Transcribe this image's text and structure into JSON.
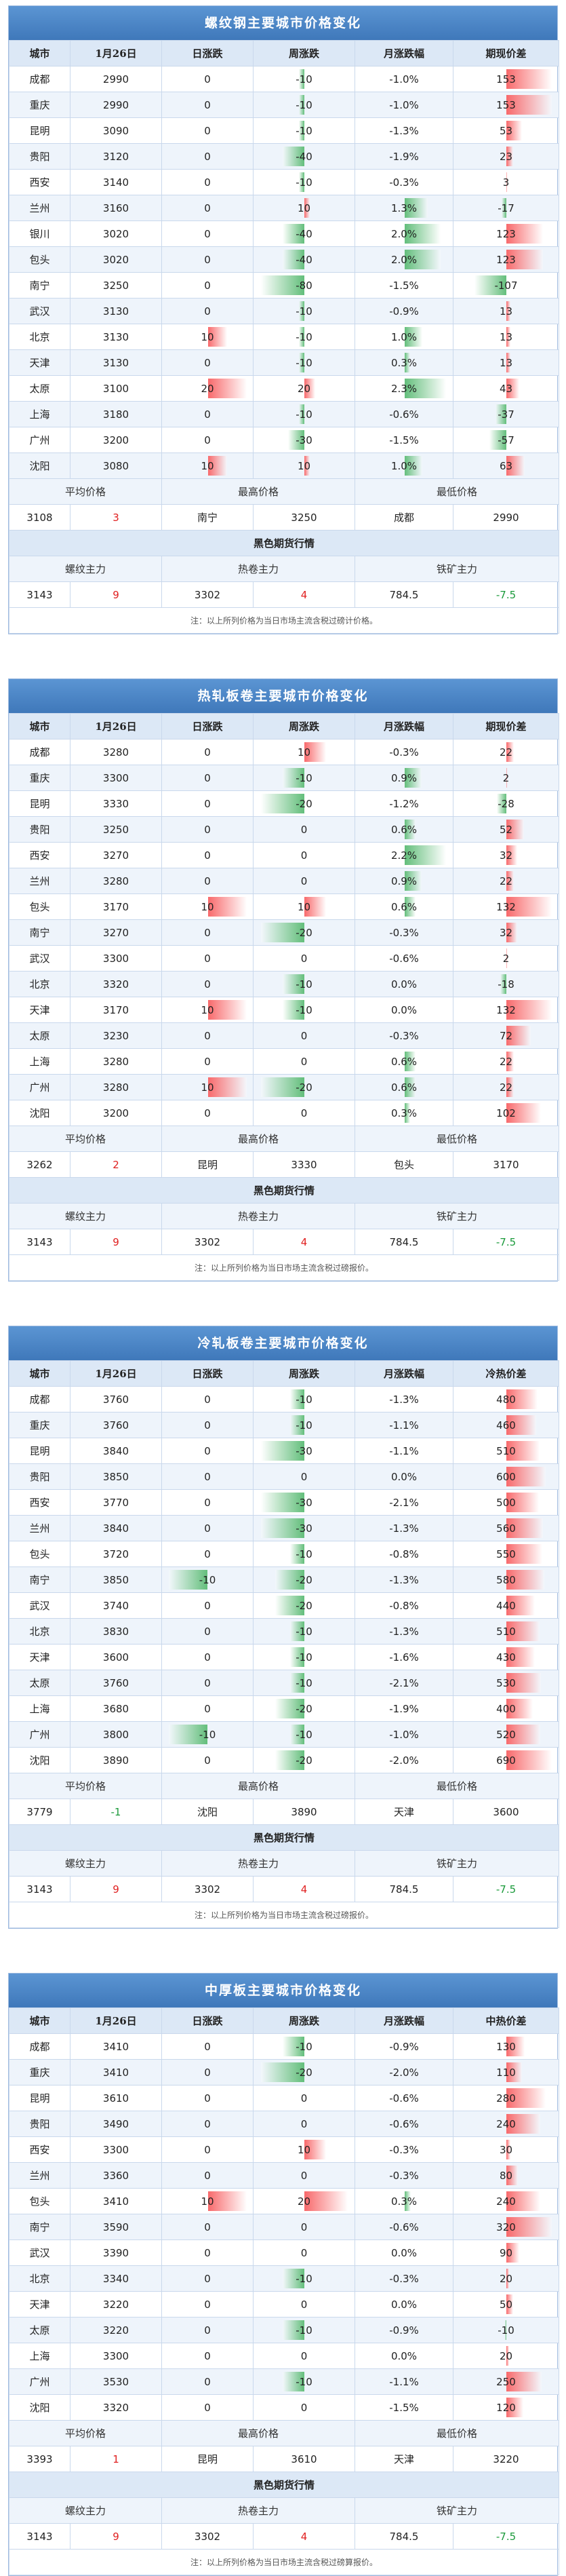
{
  "bar_colors": {
    "up": "#f8696b",
    "down": "#63be7b",
    "month_up": "#63be7b"
  },
  "text_colors": {
    "up": "#e02020",
    "down": "#1a9a3a"
  },
  "tables": [
    {
      "title": "螺纹钢主要城市价格变化",
      "columns": [
        "城市",
        "1月26日",
        "日涨跌",
        "周涨跌",
        "月涨跌幅",
        "期现价差"
      ],
      "rows": [
        [
          "成都",
          2990,
          0,
          -10,
          "-1.0%",
          153
        ],
        [
          "重庆",
          2990,
          0,
          -10,
          "-1.0%",
          153
        ],
        [
          "昆明",
          3090,
          0,
          -10,
          "-1.3%",
          53
        ],
        [
          "贵阳",
          3120,
          0,
          -40,
          "-1.9%",
          23
        ],
        [
          "西安",
          3140,
          0,
          -10,
          "-0.3%",
          3
        ],
        [
          "兰州",
          3160,
          0,
          10,
          "1.3%",
          -17
        ],
        [
          "银川",
          3020,
          0,
          -40,
          "2.0%",
          123
        ],
        [
          "包头",
          3020,
          0,
          -40,
          "2.0%",
          123
        ],
        [
          "南宁",
          3250,
          0,
          -80,
          "-1.5%",
          -107
        ],
        [
          "武汉",
          3130,
          0,
          -10,
          "-0.9%",
          13
        ],
        [
          "北京",
          3130,
          10,
          -10,
          "1.0%",
          13
        ],
        [
          "天津",
          3130,
          0,
          -10,
          "0.3%",
          13
        ],
        [
          "太原",
          3100,
          20,
          20,
          "2.3%",
          43
        ],
        [
          "上海",
          3180,
          0,
          -10,
          "-0.6%",
          -37
        ],
        [
          "广州",
          3200,
          0,
          -30,
          "-1.5%",
          -57
        ],
        [
          "沈阳",
          3080,
          10,
          10,
          "1.0%",
          63
        ]
      ],
      "summary": {
        "labels": [
          "平均价格",
          "最高价格",
          "最低价格"
        ],
        "values": [
          3108,
          3,
          "南宁",
          3250,
          "成都",
          2990
        ]
      },
      "futures": {
        "title": "黑色期货行情",
        "labels": [
          "螺纹主力",
          "热卷主力",
          "铁矿主力"
        ],
        "values": [
          3143,
          9,
          3302,
          4,
          784.5,
          -7.5
        ]
      },
      "note": "注：以上所列价格为当日市场主流含税过磅计价格。"
    },
    {
      "title": "热轧板卷主要城市价格变化",
      "columns": [
        "城市",
        "1月26日",
        "日涨跌",
        "周涨跌",
        "月涨跌幅",
        "期现价差"
      ],
      "rows": [
        [
          "成都",
          3280,
          0,
          10,
          "-0.3%",
          22
        ],
        [
          "重庆",
          3300,
          0,
          -10,
          "0.9%",
          2
        ],
        [
          "昆明",
          3330,
          0,
          -20,
          "-1.2%",
          -28
        ],
        [
          "贵阳",
          3250,
          0,
          0,
          "0.6%",
          52
        ],
        [
          "西安",
          3270,
          0,
          0,
          "2.2%",
          32
        ],
        [
          "兰州",
          3280,
          0,
          0,
          "0.9%",
          22
        ],
        [
          "包头",
          3170,
          10,
          10,
          "0.6%",
          132
        ],
        [
          "南宁",
          3270,
          0,
          -20,
          "-0.3%",
          32
        ],
        [
          "武汉",
          3300,
          0,
          0,
          "-0.6%",
          2
        ],
        [
          "北京",
          3320,
          0,
          -10,
          "0.0%",
          -18
        ],
        [
          "天津",
          3170,
          10,
          -10,
          "0.0%",
          132
        ],
        [
          "太原",
          3230,
          0,
          0,
          "-0.3%",
          72
        ],
        [
          "上海",
          3280,
          0,
          0,
          "0.6%",
          22
        ],
        [
          "广州",
          3280,
          10,
          -20,
          "0.6%",
          22
        ],
        [
          "沈阳",
          3200,
          0,
          0,
          "0.3%",
          102
        ]
      ],
      "summary": {
        "labels": [
          "平均价格",
          "最高价格",
          "最低价格"
        ],
        "values": [
          3262,
          2,
          "昆明",
          3330,
          "包头",
          3170
        ]
      },
      "futures": {
        "title": "黑色期货行情",
        "labels": [
          "螺纹主力",
          "热卷主力",
          "铁矿主力"
        ],
        "values": [
          3143,
          9,
          3302,
          4,
          784.5,
          -7.5
        ]
      },
      "note": "注：以上所列价格为当日市场主流含税过磅报价。"
    },
    {
      "title": "冷轧板卷主要城市价格变化",
      "columns": [
        "城市",
        "1月26日",
        "日涨跌",
        "周涨跌",
        "月涨跌幅",
        "冷热价差"
      ],
      "rows": [
        [
          "成都",
          3760,
          0,
          -10,
          "-1.3%",
          480
        ],
        [
          "重庆",
          3760,
          0,
          -10,
          "-1.1%",
          460
        ],
        [
          "昆明",
          3840,
          0,
          -30,
          "-1.1%",
          510
        ],
        [
          "贵阳",
          3850,
          0,
          0,
          "0.0%",
          600
        ],
        [
          "西安",
          3770,
          0,
          -30,
          "-2.1%",
          500
        ],
        [
          "兰州",
          3840,
          0,
          -30,
          "-1.3%",
          560
        ],
        [
          "包头",
          3720,
          0,
          -10,
          "-0.8%",
          550
        ],
        [
          "南宁",
          3850,
          -10,
          -20,
          "-1.3%",
          580
        ],
        [
          "武汉",
          3740,
          0,
          -20,
          "-0.8%",
          440
        ],
        [
          "北京",
          3830,
          0,
          -10,
          "-1.3%",
          510
        ],
        [
          "天津",
          3600,
          0,
          -10,
          "-1.6%",
          430
        ],
        [
          "太原",
          3760,
          0,
          -10,
          "-2.1%",
          530
        ],
        [
          "上海",
          3680,
          0,
          -20,
          "-1.9%",
          400
        ],
        [
          "广州",
          3800,
          -10,
          -10,
          "-1.0%",
          520
        ],
        [
          "沈阳",
          3890,
          0,
          -20,
          "-2.0%",
          690
        ]
      ],
      "summary": {
        "labels": [
          "平均价格",
          "最高价格",
          "最低价格"
        ],
        "values": [
          3779,
          -1,
          "沈阳",
          3890,
          "天津",
          3600
        ]
      },
      "futures": {
        "title": "黑色期货行情",
        "labels": [
          "螺纹主力",
          "热卷主力",
          "铁矿主力"
        ],
        "values": [
          3143,
          9,
          3302,
          4,
          784.5,
          -7.5
        ]
      },
      "note": "注：以上所列价格为当日市场主流含税过磅报价。"
    },
    {
      "title": "中厚板主要城市价格变化",
      "columns": [
        "城市",
        "1月26日",
        "日涨跌",
        "周涨跌",
        "月涨跌幅",
        "中热价差"
      ],
      "rows": [
        [
          "成都",
          3410,
          0,
          -10,
          "-0.9%",
          130
        ],
        [
          "重庆",
          3410,
          0,
          -20,
          "-2.0%",
          110
        ],
        [
          "昆明",
          3610,
          0,
          0,
          "-0.6%",
          280
        ],
        [
          "贵阳",
          3490,
          0,
          0,
          "-0.6%",
          240
        ],
        [
          "西安",
          3300,
          0,
          10,
          "-0.3%",
          30
        ],
        [
          "兰州",
          3360,
          0,
          0,
          "-0.3%",
          80
        ],
        [
          "包头",
          3410,
          10,
          20,
          "0.3%",
          240
        ],
        [
          "南宁",
          3590,
          0,
          0,
          "-0.6%",
          320
        ],
        [
          "武汉",
          3390,
          0,
          0,
          "0.0%",
          90
        ],
        [
          "北京",
          3340,
          0,
          -10,
          "-0.3%",
          20
        ],
        [
          "天津",
          3220,
          0,
          0,
          "0.0%",
          50
        ],
        [
          "太原",
          3220,
          0,
          -10,
          "-0.9%",
          -10
        ],
        [
          "上海",
          3300,
          0,
          0,
          "0.0%",
          20
        ],
        [
          "广州",
          3530,
          0,
          -10,
          "-1.1%",
          250
        ],
        [
          "沈阳",
          3320,
          0,
          0,
          "-1.5%",
          120
        ]
      ],
      "summary": {
        "labels": [
          "平均价格",
          "最高价格",
          "最低价格"
        ],
        "values": [
          3393,
          1,
          "昆明",
          3610,
          "天津",
          3220
        ]
      },
      "futures": {
        "title": "黑色期货行情",
        "labels": [
          "螺纹主力",
          "热卷主力",
          "铁矿主力"
        ],
        "values": [
          3143,
          9,
          3302,
          4,
          784.5,
          -7.5
        ]
      },
      "note": "注：以上所列价格为当日市场主流含税过磅算报价。"
    }
  ]
}
